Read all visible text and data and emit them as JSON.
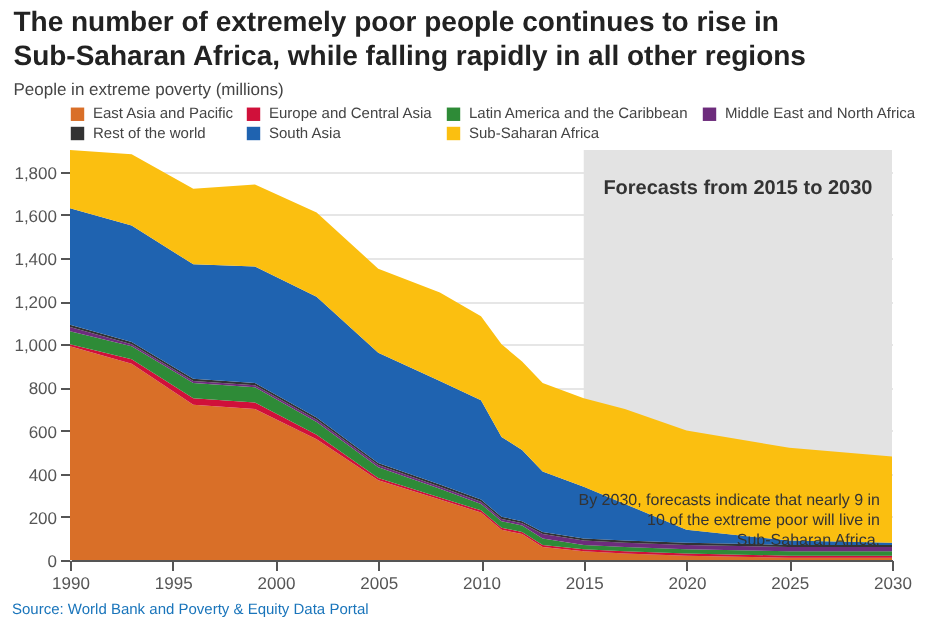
{
  "chart_data": {
    "type": "area",
    "title": "The number of extremely poor people continues to rise in Sub-Saharan Africa, while falling rapidly in all other regions",
    "ylabel": "People in extreme poverty (millions)",
    "stacked": true,
    "x": [
      1990,
      1993,
      1996,
      1999,
      2002,
      2005,
      2008,
      2010,
      2011,
      2012,
      2013,
      2015,
      2017,
      2020,
      2025,
      2030
    ],
    "series": [
      {
        "name": "East Asia and Pacific",
        "color": "#d96f28",
        "values": [
          990,
          910,
          720,
          700,
          560,
          370,
          280,
          220,
          140,
          120,
          60,
          40,
          30,
          20,
          10,
          10
        ]
      },
      {
        "name": "Europe and Central Asia",
        "color": "#d0103a",
        "values": [
          10,
          20,
          30,
          30,
          20,
          10,
          10,
          10,
          10,
          10,
          10,
          10,
          10,
          10,
          10,
          10
        ]
      },
      {
        "name": "Latin America and the Caribbean",
        "color": "#2e8b37",
        "values": [
          60,
          60,
          70,
          70,
          60,
          50,
          40,
          30,
          30,
          30,
          30,
          20,
          20,
          20,
          20,
          20
        ]
      },
      {
        "name": "Middle East and North Africa",
        "color": "#6d2c7c",
        "values": [
          20,
          10,
          10,
          10,
          10,
          10,
          10,
          10,
          10,
          10,
          20,
          20,
          20,
          20,
          20,
          20
        ]
      },
      {
        "name": "Rest of the world",
        "color": "#333333",
        "values": [
          10,
          10,
          10,
          10,
          10,
          10,
          10,
          10,
          10,
          10,
          10,
          10,
          10,
          10,
          10,
          10
        ]
      },
      {
        "name": "South Asia",
        "color": "#1f63b0",
        "values": [
          540,
          540,
          530,
          540,
          560,
          510,
          480,
          460,
          370,
          330,
          280,
          240,
          170,
          60,
          20,
          10
        ]
      },
      {
        "name": "Sub-Saharan Africa",
        "color": "#fbbf10",
        "values": [
          270,
          330,
          350,
          380,
          390,
          390,
          410,
          390,
          430,
          410,
          410,
          410,
          440,
          460,
          430,
          400
        ]
      }
    ],
    "xlim": [
      1990,
      2030
    ],
    "xticks": [
      1990,
      1995,
      2000,
      2005,
      2010,
      2015,
      2020,
      2025,
      2030
    ],
    "ylim": [
      0,
      1900
    ],
    "yticks": [
      0,
      200,
      400,
      600,
      800,
      {
        "value": 1000,
        "label": "1,000"
      },
      {
        "value": 1200,
        "label": "1,200"
      },
      {
        "value": 1400,
        "label": "1,400"
      },
      {
        "value": 1600,
        "label": "1,600"
      },
      {
        "value": 1800,
        "label": "1,800"
      }
    ],
    "grid": "y",
    "legend": "top",
    "bands": [
      {
        "axis": "x",
        "from": 2015,
        "to": 2030,
        "label": "Forecasts from 2015 to 2030",
        "color": "#e3e3e3"
      }
    ],
    "annotations": [
      "By 2030, forecasts indicate that nearly 9 in 10 of the extreme poor will live in Sub-Saharan Africa.",
      "Source: World Bank and Poverty & Equity Data Portal"
    ]
  }
}
